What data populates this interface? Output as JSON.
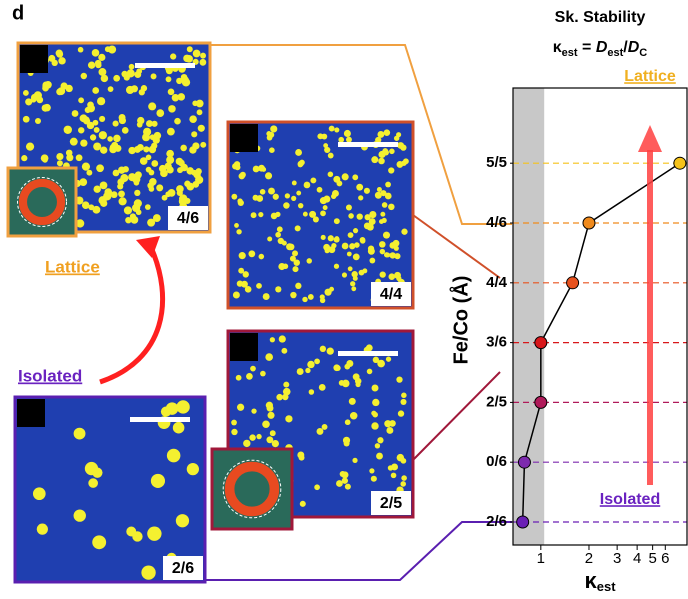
{
  "panel_letter": "d",
  "panels": [
    {
      "label": "4/6"
    },
    {
      "label": "4/4"
    },
    {
      "label": "2/5"
    },
    {
      "label": "2/6"
    }
  ],
  "annotations": {
    "lattice_left": "Lattice",
    "isolated_left": "Isolated"
  },
  "chart_data": {
    "type": "line",
    "title": "Sk. Stability",
    "subtitle": [
      "κ",
      "est",
      " = ",
      "D",
      "est",
      "/",
      "D",
      "C"
    ],
    "xlabel": [
      "κ",
      "est"
    ],
    "ylabel": "Fe/Co (Å)",
    "categories": [
      "2/6",
      "0/6",
      "2/5",
      "3/6",
      "4/4",
      "4/6",
      "5/5"
    ],
    "series": [
      {
        "color": "#000000",
        "values": [
          0.77,
          0.79,
          1.0,
          1.0,
          1.58,
          2.0,
          7.4
        ],
        "point_colors": [
          "#6a1fb5",
          "#7d2aae",
          "#b01a5a",
          "#d8171b",
          "#e8521e",
          "#f08a1c",
          "#f5c21a"
        ]
      }
    ],
    "xlim": [
      0.67,
      8.2
    ],
    "xticks": [
      1,
      2,
      3,
      4,
      5,
      6
    ],
    "xscale": "log",
    "shaded_xlim": [
      0.67,
      1.05
    ],
    "annotations": {
      "top": "Lattice",
      "bottom": "Isolated"
    }
  }
}
